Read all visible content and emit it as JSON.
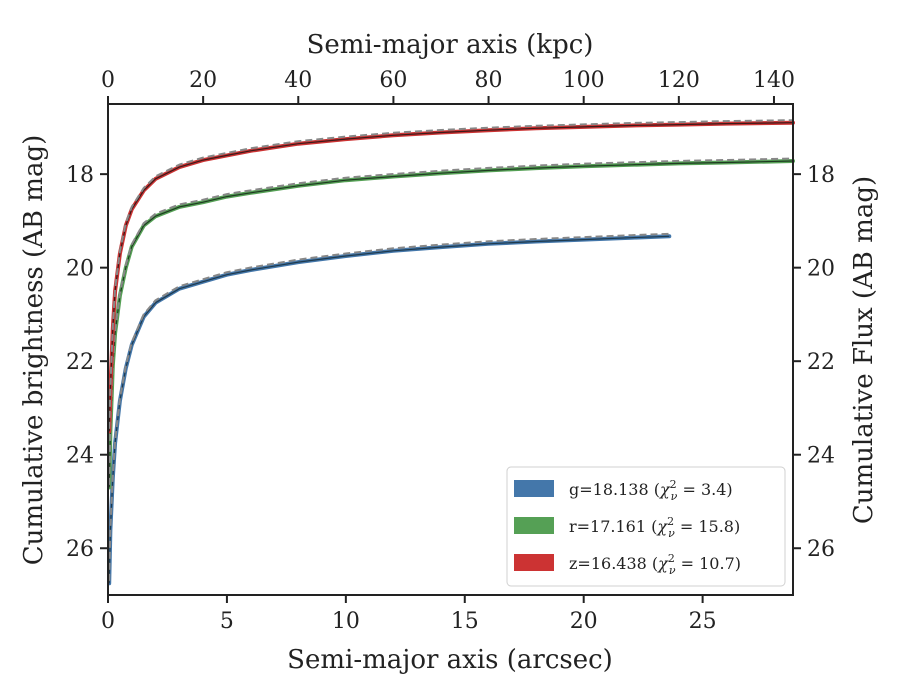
{
  "chart_data": {
    "type": "line",
    "xlabel": "Semi-major axis (arcsec)",
    "x2label": "Semi-major axis (kpc)",
    "ylabel": "Cumulative brightness (AB mag)",
    "y2label": "Cumulative Flux (AB mag)",
    "xlim": [
      0,
      28.8
    ],
    "ylim": [
      27.0,
      16.5
    ],
    "y_inverted": true,
    "x_ticks": [
      0,
      5,
      10,
      15,
      20,
      25
    ],
    "x2lim": [
      0,
      144
    ],
    "x2_ticks": [
      0,
      20,
      40,
      60,
      80,
      100,
      120,
      140
    ],
    "y_ticks": [
      18,
      20,
      22,
      24,
      26
    ],
    "y2_ticks": [
      18,
      20,
      22,
      24,
      26
    ],
    "legend_position": "lower-right",
    "grid": false,
    "series": [
      {
        "name": "g=18.138 (χ²ᵥ = 3.4)",
        "legend_main": "g=18.138 (",
        "legend_sub": "ν",
        "legend_sup": "2",
        "legend_tail": " = 3.4)",
        "color": "#4477aa",
        "model_color": "#1f3a4d",
        "x": [
          0.05,
          0.1,
          0.2,
          0.3,
          0.5,
          0.75,
          1.0,
          1.5,
          2.0,
          3.0,
          4.0,
          5.0,
          6.0,
          8.0,
          10.0,
          12.0,
          14.0,
          16.0,
          18.0,
          20.0,
          22.0,
          23.6
        ],
        "y": [
          26.75,
          25.6,
          24.5,
          23.75,
          22.85,
          22.15,
          21.65,
          21.05,
          20.75,
          20.45,
          20.3,
          20.15,
          20.05,
          19.88,
          19.75,
          19.64,
          19.56,
          19.49,
          19.44,
          19.4,
          19.36,
          19.33
        ]
      },
      {
        "name": "r=17.161 (χ²ᵥ = 15.8)",
        "legend_main": "r=17.161 (",
        "legend_sub": "ν",
        "legend_sup": "2",
        "legend_tail": " = 15.8)",
        "color": "#55a055",
        "model_color": "#1f3a22",
        "x": [
          0.05,
          0.1,
          0.2,
          0.3,
          0.5,
          0.75,
          1.0,
          1.5,
          2.0,
          3.0,
          4.0,
          5.0,
          6.0,
          8.0,
          10.0,
          12.0,
          14.0,
          16.0,
          18.0,
          20.0,
          22.0,
          24.0,
          26.0,
          28.8
        ],
        "y": [
          24.7,
          23.5,
          22.1,
          21.4,
          20.6,
          20.0,
          19.55,
          19.1,
          18.9,
          18.7,
          18.6,
          18.48,
          18.4,
          18.25,
          18.13,
          18.05,
          17.98,
          17.92,
          17.87,
          17.83,
          17.8,
          17.77,
          17.75,
          17.72
        ]
      },
      {
        "name": "z=16.438 (χ²ᵥ = 10.7)",
        "legend_main": "z=16.438 (",
        "legend_sub": "ν",
        "legend_sup": "2",
        "legend_tail": " = 10.7)",
        "color": "#cc3333",
        "model_color": "#3a1a1a",
        "x": [
          0.05,
          0.1,
          0.2,
          0.3,
          0.5,
          0.75,
          1.0,
          1.5,
          2.0,
          3.0,
          4.0,
          5.0,
          6.0,
          8.0,
          10.0,
          12.0,
          14.0,
          16.0,
          18.0,
          20.0,
          22.0,
          24.0,
          26.0,
          28.8
        ],
        "y": [
          23.5,
          22.6,
          21.3,
          20.5,
          19.7,
          19.1,
          18.75,
          18.35,
          18.1,
          17.85,
          17.7,
          17.6,
          17.5,
          17.35,
          17.25,
          17.17,
          17.11,
          17.06,
          17.02,
          16.99,
          16.96,
          16.94,
          16.92,
          16.9
        ]
      }
    ]
  }
}
